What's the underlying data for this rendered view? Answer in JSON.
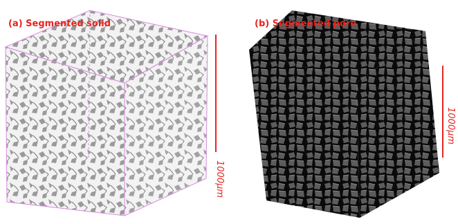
{
  "panels": [
    {
      "label": "(a) Segmented solid",
      "scale_label": "1000μm"
    },
    {
      "label": "(b) Segmented pore",
      "scale_label": "1000μm"
    }
  ]
}
